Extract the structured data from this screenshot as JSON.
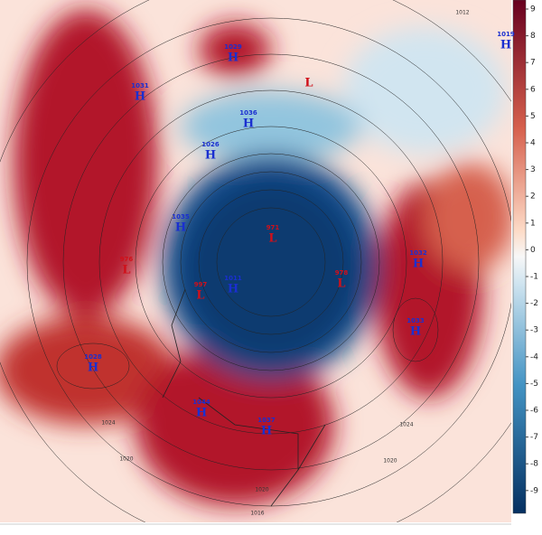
{
  "colorbar": {
    "ticks": [
      9,
      8,
      7,
      6,
      5,
      4,
      3,
      2,
      1,
      0,
      -1,
      -2,
      -3,
      -4,
      -5,
      -6,
      -7,
      -8,
      -9
    ]
  },
  "centers": [
    {
      "letter": "H",
      "value": "1029"
    },
    {
      "letter": "L",
      "value": ""
    },
    {
      "letter": "H",
      "value": "1019"
    },
    {
      "letter": "H",
      "value": "1031"
    },
    {
      "letter": "H",
      "value": "1036"
    },
    {
      "letter": "H",
      "value": "1026"
    },
    {
      "letter": "H",
      "value": "1035"
    },
    {
      "letter": "L",
      "value": "976"
    },
    {
      "letter": "L",
      "value": "971"
    },
    {
      "letter": "L",
      "value": "997"
    },
    {
      "letter": "H",
      "value": "1011"
    },
    {
      "letter": "L",
      "value": "978"
    },
    {
      "letter": "H",
      "value": "1032"
    },
    {
      "letter": "H",
      "value": "1033"
    },
    {
      "letter": "H",
      "value": "1028"
    },
    {
      "letter": "H",
      "value": "1044"
    },
    {
      "letter": "H",
      "value": "1037"
    }
  ],
  "contour_labels": [
    "1024",
    "1020",
    "1024",
    "1020",
    "1012",
    "1020",
    "1016"
  ]
}
